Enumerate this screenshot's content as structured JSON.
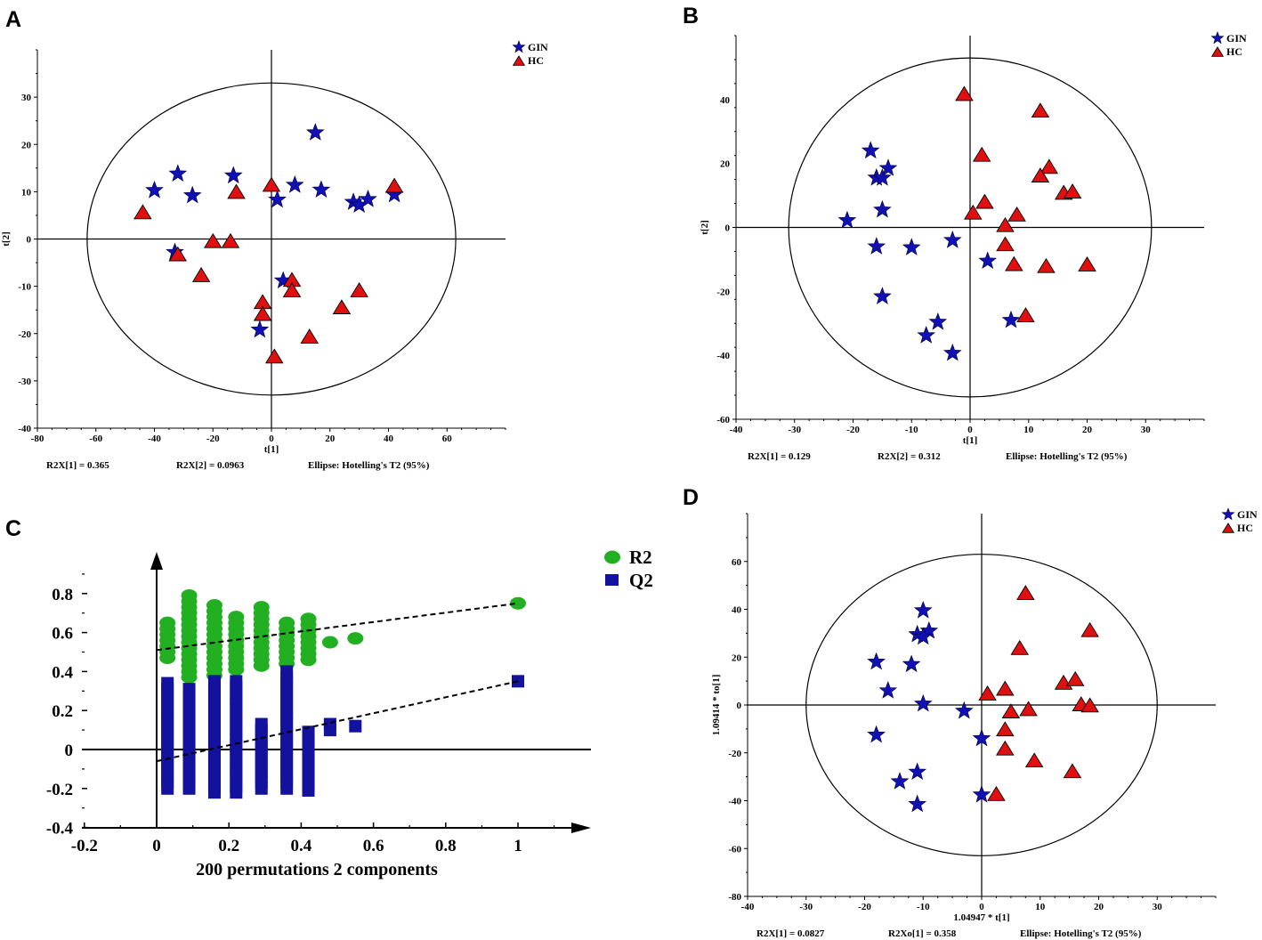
{
  "colors": {
    "gin": "#1010b4",
    "hc": "#e01010",
    "r2": "#22b022",
    "q2": "#12129e"
  },
  "panels": {
    "A": "A",
    "B": "B",
    "C": "C",
    "D": "D"
  },
  "chart_data": [
    {
      "id": "A",
      "type": "scatter",
      "title": "",
      "xlabel": "t[1]",
      "ylabel": "t[2]",
      "xlim": [
        -80,
        80
      ],
      "ylim": [
        -40,
        40
      ],
      "xticks": [
        -80,
        -60,
        -40,
        -20,
        0,
        20,
        40,
        60
      ],
      "yticks": [
        -40,
        -30,
        -20,
        -10,
        0,
        10,
        20,
        30
      ],
      "ellipse": {
        "rx": 63,
        "ry": 33
      },
      "legend": [
        "GIN",
        "HC"
      ],
      "footer": [
        "R2X[1] = 0.365",
        "R2X[2] = 0.0963",
        "Ellipse: Hotelling's T2 (95%)"
      ],
      "series": [
        {
          "name": "GIN",
          "marker": "star",
          "points": [
            [
              15,
              22.5
            ],
            [
              -32,
              13.8
            ],
            [
              -13,
              13.4
            ],
            [
              -40,
              10.3
            ],
            [
              -27,
              9.2
            ],
            [
              8,
              11.4
            ],
            [
              17,
              10.4
            ],
            [
              2,
              8.3
            ],
            [
              28,
              7.8
            ],
            [
              30,
              7.2
            ],
            [
              33,
              8.4
            ],
            [
              42,
              9.4
            ],
            [
              -33,
              -2.8
            ],
            [
              4,
              -8.8
            ],
            [
              -4,
              -19.2
            ]
          ]
        },
        {
          "name": "HC",
          "marker": "triangle",
          "points": [
            [
              -44,
              5.5
            ],
            [
              -12,
              9.8
            ],
            [
              0,
              11.3
            ],
            [
              42,
              11.1
            ],
            [
              -20,
              -0.6
            ],
            [
              -14,
              -0.6
            ],
            [
              -32,
              -3.4
            ],
            [
              -24,
              -7.8
            ],
            [
              7,
              -8.8
            ],
            [
              7,
              -11
            ],
            [
              30,
              -11
            ],
            [
              -3,
              -13.5
            ],
            [
              -3,
              -16
            ],
            [
              24,
              -14.6
            ],
            [
              13,
              -20.8
            ],
            [
              1,
              -25
            ]
          ]
        }
      ]
    },
    {
      "id": "B",
      "type": "scatter",
      "title": "",
      "xlabel": "t[1]",
      "ylabel": "t[2]",
      "xlim": [
        -40,
        40
      ],
      "ylim": [
        -60,
        60
      ],
      "xticks": [
        -40,
        -30,
        -20,
        -10,
        0,
        10,
        20,
        30
      ],
      "yticks": [
        -60,
        -40,
        -20,
        0,
        20,
        40
      ],
      "ellipse": {
        "rx": 31,
        "ry": 53
      },
      "legend": [
        "GIN",
        "HC"
      ],
      "footer": [
        "R2X[1] = 0.129",
        "R2X[2] = 0.312",
        "Ellipse: Hotelling's T2 (95%)"
      ],
      "series": [
        {
          "name": "GIN",
          "marker": "star",
          "points": [
            [
              -17,
              24
            ],
            [
              -16,
              15.5
            ],
            [
              -15,
              15.5
            ],
            [
              -14,
              18.5
            ],
            [
              -15,
              5.5
            ],
            [
              -21,
              2.2
            ],
            [
              -16,
              -6
            ],
            [
              -10,
              -6.3
            ],
            [
              -3,
              -4
            ],
            [
              3,
              -10.5
            ],
            [
              -15,
              -21.6
            ],
            [
              -5.5,
              -29.6
            ],
            [
              -7.5,
              -33.8
            ],
            [
              -3,
              -39.3
            ],
            [
              7,
              -29
            ]
          ]
        },
        {
          "name": "HC",
          "marker": "triangle",
          "points": [
            [
              -1,
              41.5
            ],
            [
              12,
              36.3
            ],
            [
              2,
              22.5
            ],
            [
              13.5,
              18.7
            ],
            [
              12,
              16
            ],
            [
              16,
              10.6
            ],
            [
              17.5,
              11
            ],
            [
              2.5,
              7.8
            ],
            [
              0.5,
              4.4
            ],
            [
              8,
              3.8
            ],
            [
              6,
              0.5
            ],
            [
              6,
              -5.5
            ],
            [
              7.5,
              -11.7
            ],
            [
              13,
              -12.3
            ],
            [
              20,
              -11.8
            ],
            [
              9.5,
              -27.7
            ]
          ]
        }
      ]
    },
    {
      "id": "C",
      "type": "scatter",
      "title": "",
      "xlabel": "200 permutations 2 components",
      "ylabel": "",
      "xlim": [
        -0.2,
        1.2
      ],
      "ylim": [
        -0.4,
        1.0
      ],
      "xticks": [
        "-0.2",
        "0",
        "0.2",
        "0.4",
        "0.6",
        "0.8",
        "1"
      ],
      "yticks": [
        "-0.4",
        "-0.2",
        "0",
        "0.2",
        "0.4",
        "0.6",
        "0.8"
      ],
      "legend": [
        "R2",
        "Q2"
      ],
      "series": [
        {
          "name": "R2",
          "marker": "circle",
          "bands": [
            [
              0.03,
              0.47,
              0.67
            ],
            [
              0.09,
              0.37,
              0.8
            ],
            [
              0.16,
              0.38,
              0.76
            ],
            [
              0.22,
              0.41,
              0.69
            ],
            [
              0.29,
              0.43,
              0.74
            ],
            [
              0.36,
              0.44,
              0.66
            ],
            [
              0.42,
              0.46,
              0.68
            ],
            [
              0.48,
              0.55,
              0.56
            ],
            [
              0.55,
              0.57,
              0.58
            ],
            [
              1.0,
              0.75,
              0.76
            ]
          ]
        },
        {
          "name": "Q2",
          "marker": "square",
          "bands": [
            [
              0.03,
              -0.2,
              0.34
            ],
            [
              0.09,
              -0.2,
              0.32
            ],
            [
              0.16,
              -0.22,
              0.36
            ],
            [
              0.22,
              -0.22,
              0.37
            ],
            [
              0.29,
              -0.2,
              0.13
            ],
            [
              0.36,
              -0.2,
              0.4
            ],
            [
              0.42,
              -0.21,
              0.11
            ],
            [
              0.48,
              0.1,
              0.13
            ],
            [
              0.55,
              0.12,
              0.13
            ],
            [
              1.0,
              0.35,
              0.35
            ]
          ]
        }
      ],
      "trendlines": [
        {
          "name": "R2",
          "from": [
            0,
            0.51
          ],
          "to": [
            1,
            0.75
          ]
        },
        {
          "name": "Q2",
          "from": [
            0,
            -0.06
          ],
          "to": [
            1,
            0.35
          ]
        }
      ]
    },
    {
      "id": "D",
      "type": "scatter",
      "title": "",
      "xlabel": "1.04947 * t[1]",
      "ylabel": "1.09414 * to[1]",
      "xlim": [
        -40,
        40
      ],
      "ylim": [
        -80,
        80
      ],
      "xticks": [
        -40,
        -30,
        -20,
        -10,
        0,
        10,
        20,
        30
      ],
      "yticks": [
        -80,
        -60,
        -40,
        -20,
        0,
        20,
        40,
        60
      ],
      "ellipse": {
        "rx": 30,
        "ry": 63
      },
      "legend": [
        "GIN",
        "HC"
      ],
      "footer": [
        "R2X[1] = 0.0827",
        "R2Xo[1] = 0.358",
        "Ellipse: Hotelling's T2 (95%)"
      ],
      "series": [
        {
          "name": "GIN",
          "marker": "star",
          "points": [
            [
              -10,
              39.5
            ],
            [
              -11,
              29.5
            ],
            [
              -9,
              31
            ],
            [
              -10,
              28.5
            ],
            [
              -18,
              18
            ],
            [
              -12,
              17
            ],
            [
              -16,
              6
            ],
            [
              -10,
              0.5
            ],
            [
              -3,
              -2.5
            ],
            [
              -18,
              -12.5
            ],
            [
              0,
              -14
            ],
            [
              -11,
              -28
            ],
            [
              -14,
              -32
            ],
            [
              -11,
              -41.5
            ],
            [
              0,
              -37.5
            ]
          ]
        },
        {
          "name": "HC",
          "marker": "triangle",
          "points": [
            [
              7.5,
              46.5
            ],
            [
              6.5,
              23.5
            ],
            [
              18.5,
              31
            ],
            [
              14,
              9
            ],
            [
              16,
              10.5
            ],
            [
              17,
              0
            ],
            [
              18.5,
              -0.5
            ],
            [
              1,
              4.5
            ],
            [
              4,
              6.5
            ],
            [
              5,
              -3
            ],
            [
              8,
              -2
            ],
            [
              4,
              -10.5
            ],
            [
              4,
              -18.5
            ],
            [
              9,
              -23.5
            ],
            [
              15.5,
              -28
            ],
            [
              2.5,
              -37.5
            ]
          ]
        }
      ]
    }
  ]
}
